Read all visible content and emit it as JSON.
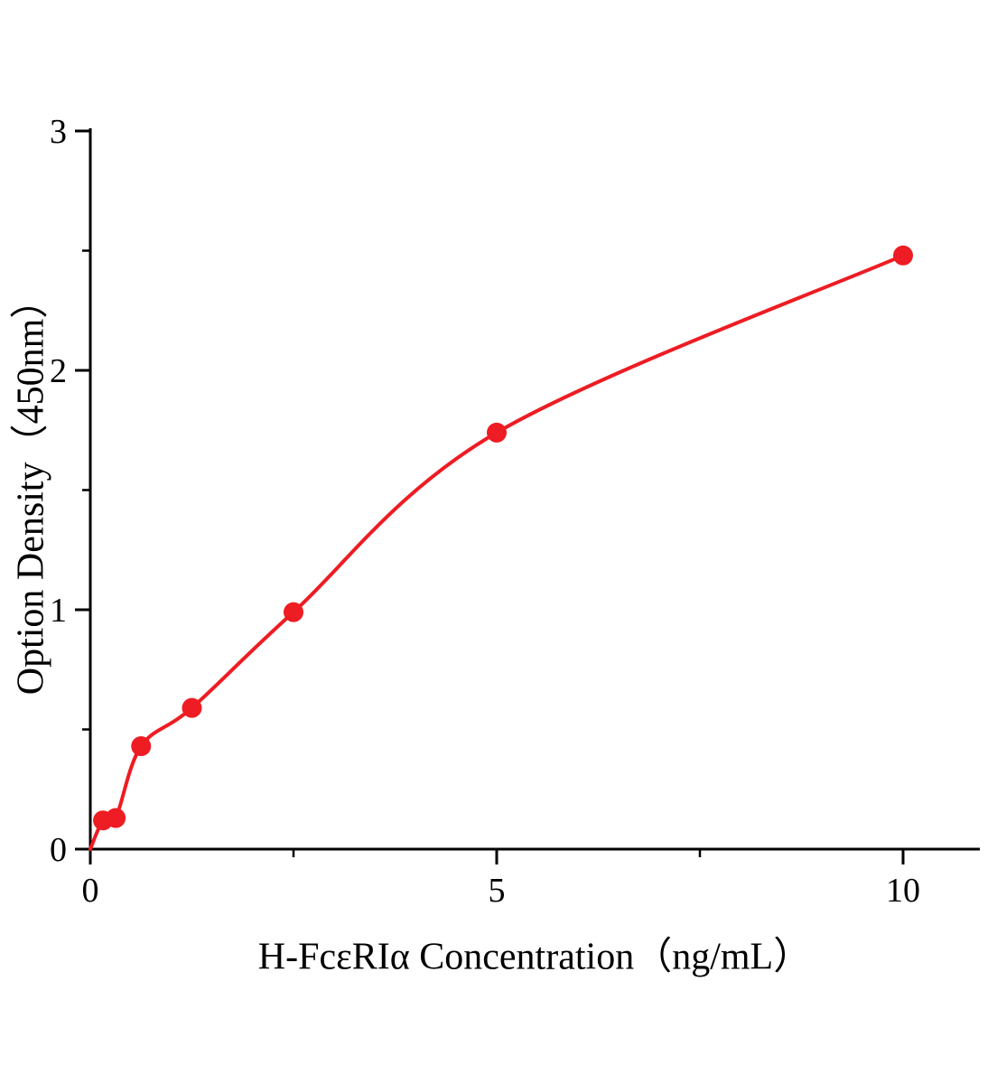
{
  "chart_data": {
    "type": "scatter",
    "title": "",
    "xlabel": "H-FcεRIα Concentration（ng/mL）",
    "ylabel": "Option Density（450nm）",
    "xlim": [
      0,
      10.95
    ],
    "ylim": [
      0,
      3
    ],
    "xticks": {
      "major": [
        0,
        5,
        10
      ],
      "labels": [
        "0",
        "5",
        "10"
      ],
      "minor": [
        2.5,
        7.5
      ]
    },
    "yticks": {
      "major": [
        0,
        1,
        2,
        3
      ],
      "labels": [
        "0",
        "1",
        "2",
        "3"
      ],
      "minor": [
        0.5,
        1.5,
        2.5
      ]
    },
    "points": [
      [
        0.156,
        0.12
      ],
      [
        0.3125,
        0.13
      ],
      [
        0.625,
        0.43
      ],
      [
        1.25,
        0.59
      ],
      [
        2.5,
        0.99
      ],
      [
        5,
        1.74
      ],
      [
        10,
        2.48
      ]
    ],
    "curve_through_origin": true,
    "legend": null,
    "grid": false,
    "colors": {
      "series": "#ee1c23",
      "axis": "#000000"
    }
  }
}
